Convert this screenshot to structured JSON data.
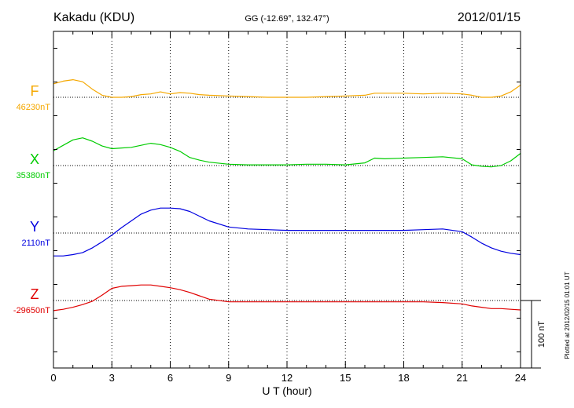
{
  "header": {
    "title": "Kakadu (KDU)",
    "coords": "GG (-12.69°, 132.47°)",
    "date": "2012/01/15"
  },
  "footer": {
    "plotted": "Plotted at 2012/02/15 01:01 UT"
  },
  "scale_label": "100 nT",
  "chart_data": {
    "type": "line",
    "xlabel": "U T (hour)",
    "xlim": [
      0,
      24
    ],
    "xticks": [
      "0",
      "3",
      "6",
      "9",
      "12",
      "15",
      "18",
      "21",
      "24"
    ],
    "grid": true,
    "scale_nT": 100,
    "series": [
      {
        "name": "F",
        "baseline_label": "46230nT",
        "baseline": 46230,
        "color": "#f5a800",
        "x": [
          0,
          0.5,
          1,
          1.5,
          2,
          2.5,
          3,
          3.5,
          4,
          4.5,
          5,
          5.5,
          6,
          6.5,
          7,
          7.5,
          8,
          9,
          10,
          11,
          12,
          13,
          14,
          15,
          16,
          16.5,
          17,
          18,
          19,
          20,
          21,
          21.5,
          22,
          22.5,
          23,
          23.5,
          24
        ],
        "y": [
          46250,
          46254,
          46256,
          46253,
          46242,
          46233,
          46230,
          46230,
          46231,
          46234,
          46235,
          46238,
          46235,
          46237,
          46236,
          46234,
          46233,
          46232,
          46231,
          46230,
          46230,
          46230,
          46231,
          46232,
          46233,
          46236,
          46236,
          46236,
          46235,
          46236,
          46235,
          46233,
          46230,
          46230,
          46232,
          46238,
          46248
        ]
      },
      {
        "name": "X",
        "baseline_label": "35380nT",
        "baseline": 35380,
        "color": "#00cc00",
        "x": [
          0,
          0.5,
          1,
          1.5,
          2,
          2.5,
          3,
          3.5,
          4,
          4.5,
          5,
          5.5,
          6,
          6.5,
          7,
          7.5,
          8,
          9,
          10,
          11,
          12,
          13,
          14,
          15,
          16,
          16.5,
          17,
          18,
          19,
          20,
          21,
          21.5,
          22,
          22.5,
          23,
          23.5,
          24
        ],
        "y": [
          35402,
          35410,
          35418,
          35421,
          35416,
          35409,
          35405,
          35406,
          35407,
          35410,
          35413,
          35411,
          35407,
          35401,
          35392,
          35388,
          35385,
          35382,
          35381,
          35381,
          35381,
          35382,
          35382,
          35381,
          35384,
          35391,
          35390,
          35391,
          35392,
          35393,
          35390,
          35381,
          35379,
          35378,
          35380,
          35387,
          35398
        ]
      },
      {
        "name": "Y",
        "baseline_label": "2110nT",
        "baseline": 2110,
        "color": "#0000e0",
        "x": [
          0,
          0.5,
          1,
          1.5,
          2,
          2.5,
          3,
          3.5,
          4,
          4.5,
          5,
          5.5,
          6,
          6.5,
          7,
          7.5,
          8,
          9,
          10,
          11,
          12,
          13,
          14,
          15,
          16,
          17,
          18,
          19,
          20,
          21,
          21.5,
          22,
          22.5,
          23,
          23.5,
          24
        ],
        "y": [
          2076,
          2076,
          2078,
          2081,
          2088,
          2097,
          2107,
          2118,
          2128,
          2138,
          2144,
          2147,
          2147,
          2146,
          2142,
          2135,
          2128,
          2119,
          2116,
          2115,
          2114,
          2114,
          2114,
          2114,
          2114,
          2114,
          2114,
          2115,
          2116,
          2112,
          2104,
          2095,
          2088,
          2083,
          2080,
          2078
        ]
      },
      {
        "name": "Z",
        "baseline_label": "-29650nT",
        "baseline": -29650,
        "color": "#e00000",
        "x": [
          0,
          0.5,
          1,
          1.5,
          2,
          2.5,
          3,
          3.5,
          4,
          4.5,
          5,
          5.5,
          6,
          6.5,
          7,
          7.5,
          8,
          9,
          10,
          11,
          12,
          13,
          14,
          15,
          16,
          17,
          18,
          19,
          20,
          21,
          21.5,
          22,
          22.5,
          23,
          23.5,
          24
        ],
        "y": [
          -29665,
          -29663,
          -29660,
          -29656,
          -29651,
          -29642,
          -29632,
          -29629,
          -29628,
          -29627,
          -29627,
          -29629,
          -29631,
          -29634,
          -29638,
          -29643,
          -29648,
          -29652,
          -29652,
          -29652,
          -29652,
          -29652,
          -29652,
          -29652,
          -29652,
          -29652,
          -29652,
          -29652,
          -29653,
          -29655,
          -29658,
          -29660,
          -29662,
          -29662,
          -29663,
          -29664
        ]
      }
    ]
  }
}
